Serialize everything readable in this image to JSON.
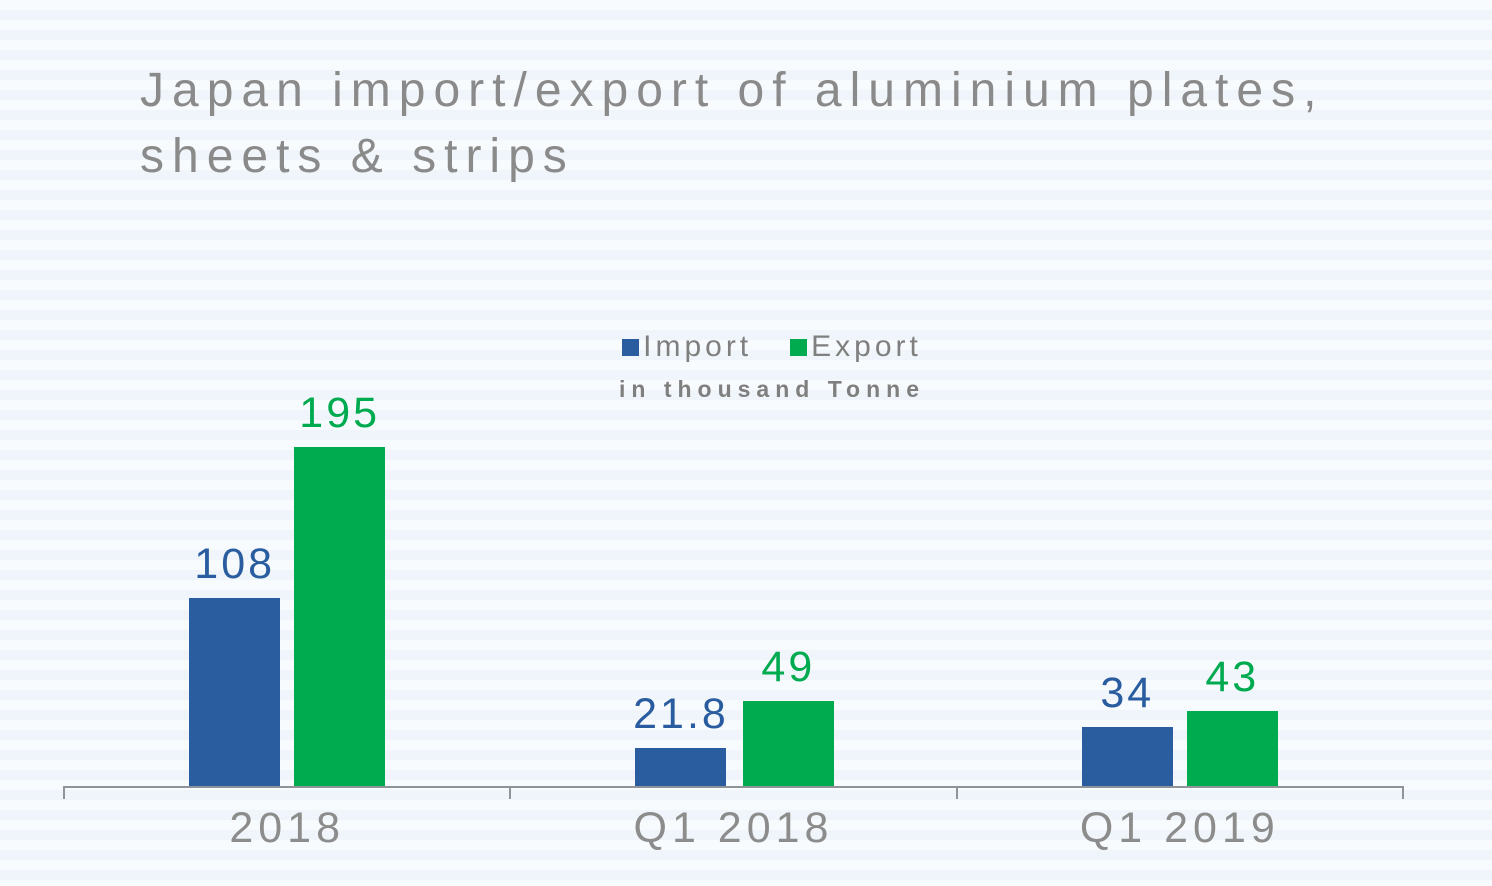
{
  "chart": {
    "title": "Japan import/export of aluminium plates, sheets & strips",
    "units_label": "in thousand Tonne"
  },
  "chart_data": {
    "type": "bar",
    "title": "Japan import/export of aluminium plates, sheets & strips",
    "subtitle": "in thousand Tonne",
    "categories": [
      "2018",
      "Q1 2018",
      "Q1 2019"
    ],
    "series": [
      {
        "name": "Import",
        "color": "#2A5CA0",
        "values": [
          108,
          21.8,
          34
        ],
        "labels": [
          "108",
          "21.8",
          "34"
        ]
      },
      {
        "name": "Export",
        "color": "#00AB50",
        "values": [
          195,
          49,
          43
        ],
        "labels": [
          "195",
          "49",
          "43"
        ]
      }
    ],
    "ylim": [
      0,
      200
    ],
    "grid": false,
    "legend_position": "top-center",
    "value_labels_shown": true,
    "axis_color": "#8f9499",
    "background_color": "#f3f8fc"
  }
}
